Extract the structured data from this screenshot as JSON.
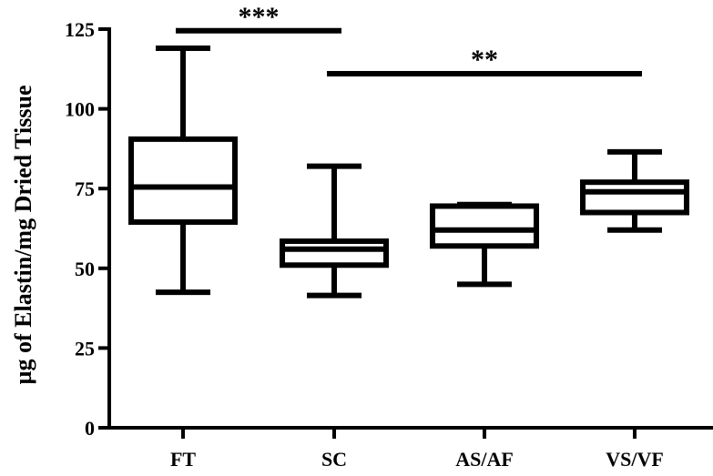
{
  "chart_data": {
    "type": "box",
    "title": "",
    "xlabel": "",
    "ylabel": "µg of Elastin/mg Dried Tissue",
    "ylim": [
      0,
      125
    ],
    "yticks": [
      0,
      25,
      50,
      75,
      100,
      125
    ],
    "ytick_labels": [
      "0",
      "25",
      "50",
      "75",
      "100",
      "125"
    ],
    "categories": [
      "FT",
      "SC",
      "AS/AF",
      "VS/VF"
    ],
    "boxes": [
      {
        "category": "FT",
        "min": 42.5,
        "q1": 64.5,
        "median": 75.5,
        "q3": 90.5,
        "max": 119
      },
      {
        "category": "SC",
        "min": 41.5,
        "q1": 51,
        "median": 56,
        "q3": 58.5,
        "max": 82
      },
      {
        "category": "AS/AF",
        "min": 45,
        "q1": 57,
        "median": 62,
        "q3": 69.5,
        "max": 70
      },
      {
        "category": "VS/VF",
        "min": 62,
        "q1": 67.5,
        "median": 74,
        "q3": 77,
        "max": 86.5
      }
    ],
    "significance": [
      {
        "from": "FT",
        "to": "SC",
        "label": "***",
        "y": 124.5
      },
      {
        "from": "SC",
        "to": "VS/VF",
        "label": "**",
        "y": 111
      }
    ],
    "grid": false,
    "legend": "none"
  }
}
